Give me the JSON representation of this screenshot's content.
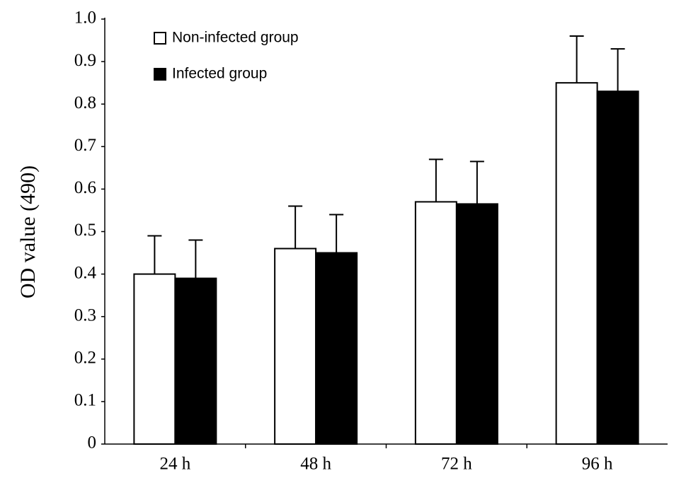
{
  "chart_data": {
    "type": "bar",
    "y_label": "OD value (490)",
    "categories": [
      "24 h",
      "48 h",
      "72 h",
      "96 h"
    ],
    "series": [
      {
        "name": "Non-infected group",
        "color": "#ffffff",
        "values": [
          0.4,
          0.46,
          0.57,
          0.85
        ],
        "errors": [
          0.09,
          0.1,
          0.1,
          0.11
        ]
      },
      {
        "name": "Infected group",
        "color": "#000000",
        "values": [
          0.39,
          0.45,
          0.565,
          0.83
        ],
        "errors": [
          0.09,
          0.09,
          0.1,
          0.1
        ]
      }
    ],
    "ylim": [
      0,
      1
    ],
    "yticks": [
      0,
      0.1,
      0.2,
      0.3,
      0.4,
      0.5,
      0.6,
      0.7,
      0.8,
      0.9,
      {
        "value": 1,
        "label": "1.0"
      }
    ],
    "grid": false,
    "legend": "upper-left"
  }
}
